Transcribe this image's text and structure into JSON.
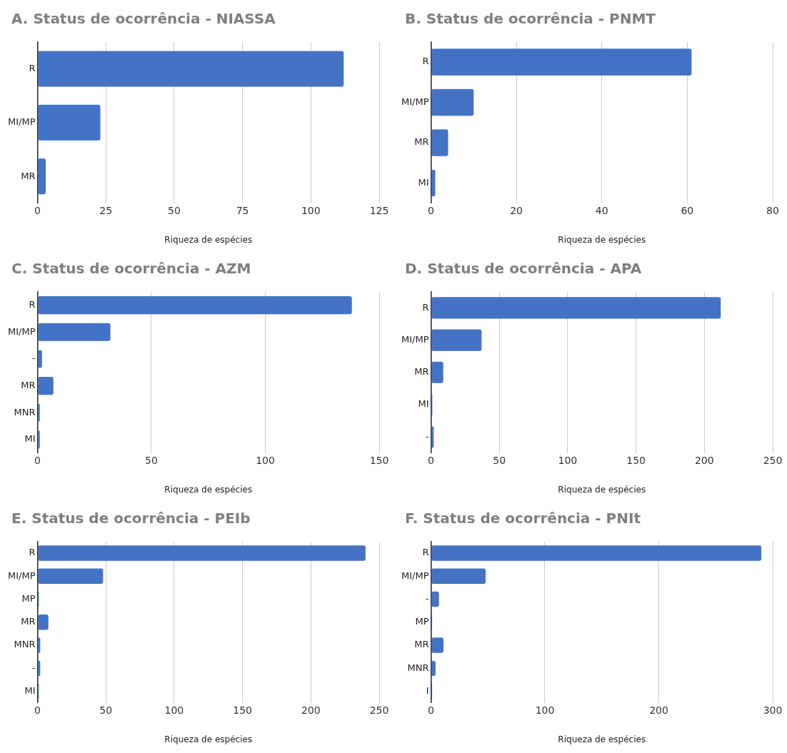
{
  "chart_data": [
    {
      "type": "bar",
      "orientation": "horizontal",
      "title": "A. Status de ocorrência - NIASSA",
      "xlabel": "Riqueza de espécies",
      "categories": [
        "R",
        "MI/MP",
        "MR"
      ],
      "values": [
        112,
        23,
        3
      ],
      "color": "#4472c4",
      "xlim": [
        0,
        125
      ],
      "xticks": [
        0,
        25,
        50,
        75,
        100,
        125
      ],
      "grid": "x"
    },
    {
      "type": "bar",
      "orientation": "horizontal",
      "title": "B. Status de ocorrência - PNMT",
      "xlabel": "Riqueza de espécies",
      "categories": [
        "R",
        "MI/MP",
        "MR",
        "MI"
      ],
      "values": [
        61,
        10,
        4,
        1
      ],
      "color": "#4472c4",
      "xlim": [
        0,
        80
      ],
      "xticks": [
        0,
        20,
        40,
        60,
        80
      ],
      "grid": "x"
    },
    {
      "type": "bar",
      "orientation": "horizontal",
      "title": "C. Status de ocorrência - AZM",
      "xlabel": "Riqueza de espécies",
      "categories": [
        "R",
        "MI/MP",
        "-",
        "MR",
        "MNR",
        "MI"
      ],
      "values": [
        138,
        32,
        2,
        7,
        1,
        1
      ],
      "color": "#4472c4",
      "xlim": [
        0,
        150
      ],
      "xticks": [
        0,
        50,
        100,
        150
      ],
      "grid": "x"
    },
    {
      "type": "bar",
      "orientation": "horizontal",
      "title": "D. Status de ocorrência - APA",
      "xlabel": "Riqueza de espécies",
      "categories": [
        "R",
        "MI/MP",
        "MR",
        "MI",
        "-"
      ],
      "values": [
        212,
        37,
        9,
        1,
        2
      ],
      "color": "#4472c4",
      "xlim": [
        0,
        250
      ],
      "xticks": [
        0,
        50,
        100,
        150,
        200,
        250
      ],
      "grid": "x"
    },
    {
      "type": "bar",
      "orientation": "horizontal",
      "title": "E. Status de ocorrência - PEIb",
      "xlabel": "Riqueza de espécies",
      "categories": [
        "R",
        "MI/MP",
        "MP",
        "MR",
        "MNR",
        "-",
        "MI"
      ],
      "values": [
        240,
        48,
        1,
        8,
        2,
        2,
        1
      ],
      "color": "#4472c4",
      "xlim": [
        0,
        250
      ],
      "xticks": [
        0,
        50,
        100,
        150,
        200,
        250
      ],
      "grid": "x"
    },
    {
      "type": "bar",
      "orientation": "horizontal",
      "title": "F. Status de ocorrência - PNIt",
      "xlabel": "Riqueza de espécies",
      "categories": [
        "R",
        "MI/MP",
        "-",
        "MP",
        "MR",
        "MNR",
        "I"
      ],
      "values": [
        290,
        48,
        7,
        1,
        11,
        4,
        1
      ],
      "color": "#4472c4",
      "xlim": [
        0,
        300
      ],
      "xticks": [
        0,
        100,
        200,
        300
      ],
      "grid": "x"
    }
  ]
}
